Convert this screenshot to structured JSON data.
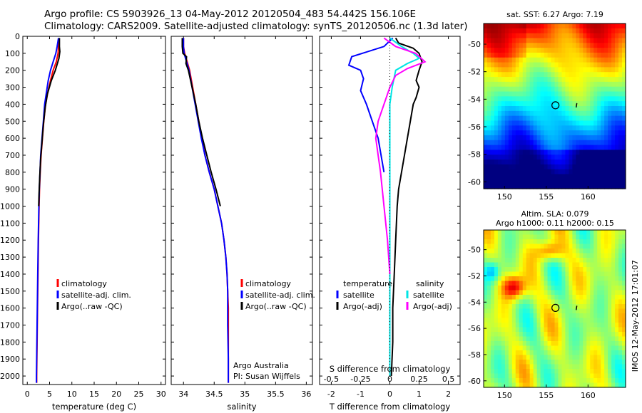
{
  "header": {
    "line1": "Argo profile: CS 5903926_13 04-May-2012 20120504_483 54.442S 156.106E",
    "line2": "Climatology: CARS2009. Satellite-adjusted climatology: synTS_20120506.nc (1.3d later)"
  },
  "colors": {
    "climatology": "#ff0000",
    "satellite": "#0000ff",
    "argo": "#000000",
    "sal_satellite": "#00e5e5",
    "sal_argo": "#ff00ff"
  },
  "chart_data": [
    {
      "type": "line",
      "xlabel": "temperature (deg C)",
      "ylabel": "",
      "xlim": [
        -1,
        31
      ],
      "ylim": [
        2050,
        0
      ],
      "xticks": [
        "0",
        "5",
        "10",
        "15",
        "20",
        "25",
        "30"
      ],
      "yticks": [
        "0",
        "100",
        "200",
        "300",
        "400",
        "500",
        "600",
        "700",
        "800",
        "900",
        "1000",
        "1100",
        "1200",
        "1300",
        "1400",
        "1500",
        "1600",
        "1700",
        "1800",
        "1900",
        "2000"
      ],
      "legend": [
        "climatology",
        "satellite-adj. clim.",
        "Argo(..raw -QC)"
      ],
      "series": [
        {
          "name": "climatology",
          "color": "#ff0000",
          "points": [
            [
              7.1,
              10
            ],
            [
              7.0,
              60
            ],
            [
              6.9,
              100
            ],
            [
              6.5,
              150
            ],
            [
              5.8,
              200
            ],
            [
              5.2,
              260
            ],
            [
              4.6,
              330
            ],
            [
              4.1,
              400
            ],
            [
              3.7,
              500
            ],
            [
              3.4,
              600
            ],
            [
              3.1,
              700
            ],
            [
              2.9,
              800
            ],
            [
              2.75,
              900
            ],
            [
              2.65,
              1000
            ],
            [
              2.5,
              1200
            ],
            [
              2.4,
              1400
            ],
            [
              2.3,
              1600
            ],
            [
              2.2,
              1800
            ],
            [
              2.1,
              2000
            ],
            [
              2.1,
              2040
            ]
          ]
        },
        {
          "name": "satellite-adj. clim.",
          "color": "#0000ff",
          "points": [
            [
              7.0,
              10
            ],
            [
              6.7,
              60
            ],
            [
              6.4,
              100
            ],
            [
              5.8,
              150
            ],
            [
              5.2,
              200
            ],
            [
              4.7,
              260
            ],
            [
              4.3,
              330
            ],
            [
              3.9,
              400
            ],
            [
              3.6,
              500
            ],
            [
              3.3,
              600
            ],
            [
              3.0,
              700
            ],
            [
              2.85,
              800
            ],
            [
              2.7,
              900
            ],
            [
              2.6,
              1000
            ],
            [
              2.45,
              1200
            ],
            [
              2.35,
              1400
            ],
            [
              2.25,
              1600
            ],
            [
              2.15,
              1800
            ],
            [
              2.05,
              2000
            ],
            [
              2.05,
              2040
            ]
          ]
        },
        {
          "name": "Argo(..raw -QC)",
          "color": "#000000",
          "points": [
            [
              7.2,
              10
            ],
            [
              7.2,
              60
            ],
            [
              7.3,
              90
            ],
            [
              7.1,
              130
            ],
            [
              6.3,
              200
            ],
            [
              5.4,
              260
            ],
            [
              4.5,
              340
            ],
            [
              4.0,
              420
            ],
            [
              3.6,
              520
            ],
            [
              3.3,
              620
            ],
            [
              3.0,
              720
            ],
            [
              2.8,
              820
            ],
            [
              2.65,
              920
            ],
            [
              2.55,
              1000
            ]
          ]
        }
      ]
    },
    {
      "type": "line",
      "xlabel": "salinity",
      "ylabel": "",
      "xlim": [
        33.8,
        36.1
      ],
      "ylim": [
        2050,
        0
      ],
      "xticks": [
        "34",
        "34.5",
        "35",
        "35.5",
        "36"
      ],
      "legend": [
        "climatology",
        "satellite-adj. clim.",
        "Argo(..raw -QC)"
      ],
      "annotation": [
        "Argo Australia",
        "PI: Susan Wijffels"
      ],
      "series": [
        {
          "name": "climatology",
          "color": "#ff0000",
          "points": [
            [
              34.0,
              10
            ],
            [
              34.0,
              60
            ],
            [
              34.02,
              100
            ],
            [
              34.06,
              150
            ],
            [
              34.1,
              200
            ],
            [
              34.15,
              300
            ],
            [
              34.2,
              400
            ],
            [
              34.25,
              500
            ],
            [
              34.3,
              600
            ],
            [
              34.35,
              700
            ],
            [
              34.42,
              800
            ],
            [
              34.5,
              900
            ],
            [
              34.56,
              1000
            ],
            [
              34.62,
              1100
            ],
            [
              34.66,
              1200
            ],
            [
              34.69,
              1300
            ],
            [
              34.71,
              1400
            ],
            [
              34.72,
              1500
            ],
            [
              34.73,
              1600
            ],
            [
              34.73,
              1800
            ],
            [
              34.73,
              2040
            ]
          ]
        },
        {
          "name": "satellite-adj. clim.",
          "color": "#0000ff",
          "points": [
            [
              34.0,
              10
            ],
            [
              34.0,
              60
            ],
            [
              34.01,
              100
            ],
            [
              34.05,
              150
            ],
            [
              34.09,
              200
            ],
            [
              34.14,
              300
            ],
            [
              34.19,
              400
            ],
            [
              34.24,
              500
            ],
            [
              34.29,
              600
            ],
            [
              34.35,
              700
            ],
            [
              34.42,
              800
            ],
            [
              34.5,
              900
            ],
            [
              34.56,
              1000
            ],
            [
              34.62,
              1100
            ],
            [
              34.66,
              1200
            ],
            [
              34.69,
              1300
            ],
            [
              34.71,
              1400
            ],
            [
              34.72,
              1500
            ],
            [
              34.72,
              1700
            ],
            [
              34.73,
              1900
            ],
            [
              34.73,
              2040
            ]
          ]
        },
        {
          "name": "Argo(..raw -QC)",
          "color": "#000000",
          "points": [
            [
              33.98,
              10
            ],
            [
              33.98,
              60
            ],
            [
              33.99,
              100
            ],
            [
              34.05,
              120
            ],
            [
              34.04,
              160
            ],
            [
              34.08,
              200
            ],
            [
              34.14,
              300
            ],
            [
              34.2,
              400
            ],
            [
              34.25,
              500
            ],
            [
              34.31,
              600
            ],
            [
              34.38,
              700
            ],
            [
              34.45,
              800
            ],
            [
              34.53,
              900
            ],
            [
              34.6,
              1000
            ]
          ]
        }
      ]
    },
    {
      "type": "line",
      "xlabel": "T difference from climatology",
      "ylabel": "",
      "xlim": [
        -2.4,
        2.4
      ],
      "ylim": [
        2050,
        0
      ],
      "xticks": [
        "-2",
        "-1",
        "0",
        "1",
        "2"
      ],
      "top_axis_label": "S difference from climatology",
      "top_xticks": [
        "-0.5",
        "-0.25",
        "0",
        "0.25",
        "0.5"
      ],
      "legend_groups": [
        {
          "title": "temperature",
          "items": [
            "satellite",
            "Argo(-adj)"
          ]
        },
        {
          "title": "salinity",
          "items": [
            "satellite",
            "Argo(-adj)"
          ]
        }
      ],
      "series": [
        {
          "name": "satellite",
          "group": "temperature",
          "color": "#0000ff",
          "points": [
            [
              0.1,
              10
            ],
            [
              -0.2,
              60
            ],
            [
              -1.3,
              120
            ],
            [
              -1.4,
              170
            ],
            [
              -1.0,
              200
            ],
            [
              -0.9,
              250
            ],
            [
              -1.0,
              320
            ],
            [
              -0.8,
              400
            ],
            [
              -0.6,
              500
            ],
            [
              -0.4,
              600
            ],
            [
              -0.3,
              700
            ],
            [
              -0.2,
              800
            ]
          ]
        },
        {
          "name": "Argo(-adj)",
          "group": "temperature",
          "color": "#000000",
          "points": [
            [
              0.2,
              10
            ],
            [
              0.3,
              40
            ],
            [
              0.8,
              70
            ],
            [
              1.0,
              100
            ],
            [
              1.1,
              150
            ],
            [
              1.0,
              200
            ],
            [
              0.9,
              260
            ],
            [
              1.0,
              300
            ],
            [
              0.9,
              360
            ],
            [
              0.8,
              400
            ],
            [
              0.7,
              500
            ],
            [
              0.6,
              600
            ],
            [
              0.5,
              700
            ],
            [
              0.4,
              800
            ],
            [
              0.3,
              900
            ],
            [
              0.25,
              1000
            ],
            [
              0.2,
              1200
            ],
            [
              0.15,
              1400
            ],
            [
              0.1,
              1600
            ],
            [
              0.1,
              1800
            ],
            [
              0.05,
              2000
            ]
          ]
        },
        {
          "name": "satellite",
          "group": "salinity",
          "color": "#00e5e5",
          "points": [
            [
              0.0,
              10
            ],
            [
              0.1,
              60
            ],
            [
              0.2,
              100
            ],
            [
              0.25,
              130
            ],
            [
              0.15,
              160
            ],
            [
              0.05,
              200
            ],
            [
              0.02,
              300
            ],
            [
              0.0,
              400
            ],
            [
              0.0,
              600
            ],
            [
              0.0,
              800
            ],
            [
              0.0,
              1000
            ],
            [
              0.0,
              1400
            ],
            [
              0.0,
              2000
            ]
          ]
        },
        {
          "name": "Argo(-adj)",
          "group": "salinity",
          "color": "#ff00ff",
          "points": [
            [
              -0.05,
              10
            ],
            [
              0.05,
              60
            ],
            [
              0.22,
              100
            ],
            [
              0.3,
              150
            ],
            [
              0.15,
              190
            ],
            [
              0.05,
              230
            ],
            [
              0.0,
              300
            ],
            [
              -0.05,
              400
            ],
            [
              -0.1,
              500
            ],
            [
              -0.12,
              600
            ],
            [
              -0.1,
              700
            ],
            [
              -0.08,
              800
            ],
            [
              -0.05,
              1000
            ],
            [
              -0.02,
              1200
            ],
            [
              0.0,
              1400
            ]
          ]
        }
      ]
    },
    {
      "type": "heatmap",
      "title": "sat. SST: 6.27 Argo: 7.19",
      "xlim": [
        147.5,
        164.5
      ],
      "ylim": [
        -60.5,
        -48.5
      ],
      "xticks": [
        "150",
        "155",
        "160"
      ],
      "yticks": [
        "-50",
        "-52",
        "-54",
        "-56",
        "-58",
        "-60"
      ],
      "argo_position": [
        156.1,
        -54.44
      ],
      "colormap": "jet",
      "summary": "warm (red/orange) in north, cold (blue) in south"
    },
    {
      "type": "heatmap",
      "title": "Altim. SLA: 0.079",
      "subtitle": "Argo h1000: 0.11 h2000: 0.15",
      "xlim": [
        147.5,
        164.5
      ],
      "ylim": [
        -60.5,
        -48.5
      ],
      "xticks": [
        "150",
        "155",
        "160"
      ],
      "yticks": [
        "-50",
        "-52",
        "-54",
        "-56",
        "-58",
        "-60"
      ],
      "argo_position": [
        156.1,
        -54.44
      ],
      "colormap": "jet",
      "summary": "mostly green with blue and red eddies"
    }
  ],
  "side_label": "IMOS 12-May-2012 17:01:07"
}
